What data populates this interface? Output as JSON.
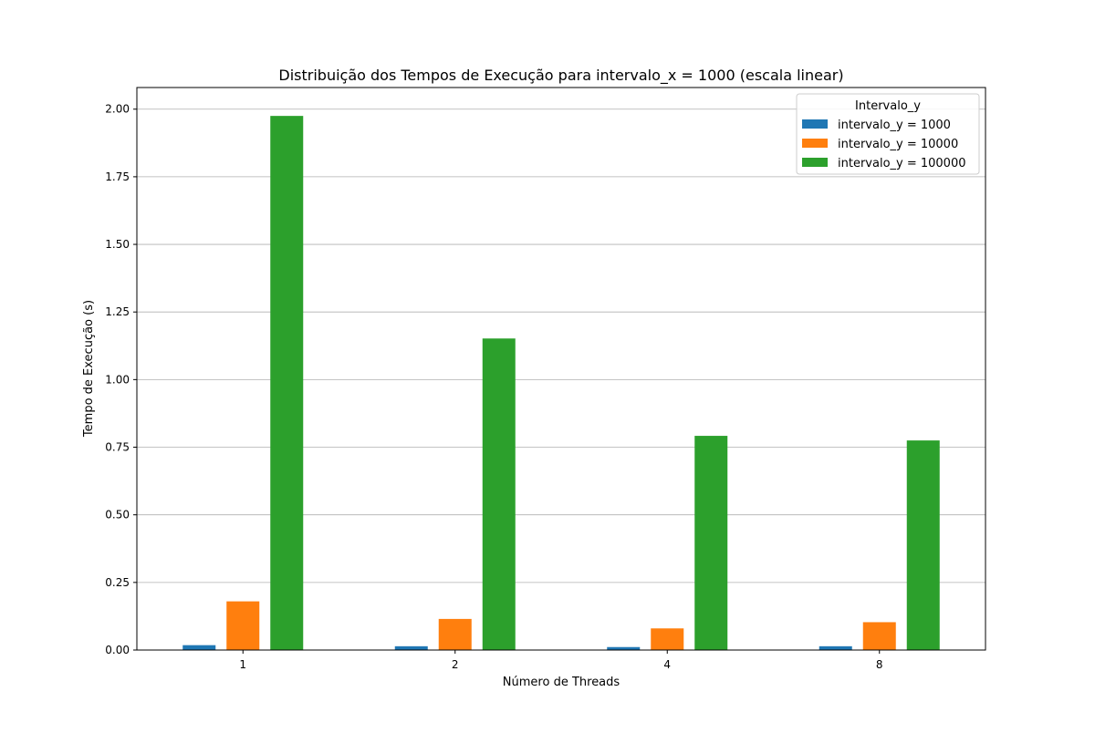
{
  "chart_data": {
    "type": "bar",
    "title": "Distribuição dos Tempos de Execução para intervalo_x = 1000 (escala linear)",
    "xlabel": "Número de Threads",
    "ylabel": "Tempo de Execução (s)",
    "categories": [
      "1",
      "2",
      "4",
      "8"
    ],
    "ylim": [
      0,
      2.08
    ],
    "yticks": [
      "0.00",
      "0.25",
      "0.50",
      "0.75",
      "1.00",
      "1.25",
      "1.50",
      "1.75",
      "2.00"
    ],
    "grid": "y-axis horizontal gridlines",
    "legend": {
      "title": "Intervalo_y",
      "placement": "top-right"
    },
    "series": [
      {
        "name": "intervalo_y = 1000",
        "color": "#1f77b4",
        "values": [
          0.018,
          0.014,
          0.011,
          0.014
        ]
      },
      {
        "name": "intervalo_y = 10000",
        "color": "#ff7f0e",
        "values": [
          0.18,
          0.115,
          0.08,
          0.103
        ]
      },
      {
        "name": "intervalo_y = 100000",
        "color": "#2ca02c",
        "values": [
          1.975,
          1.152,
          0.792,
          0.775
        ]
      }
    ]
  }
}
